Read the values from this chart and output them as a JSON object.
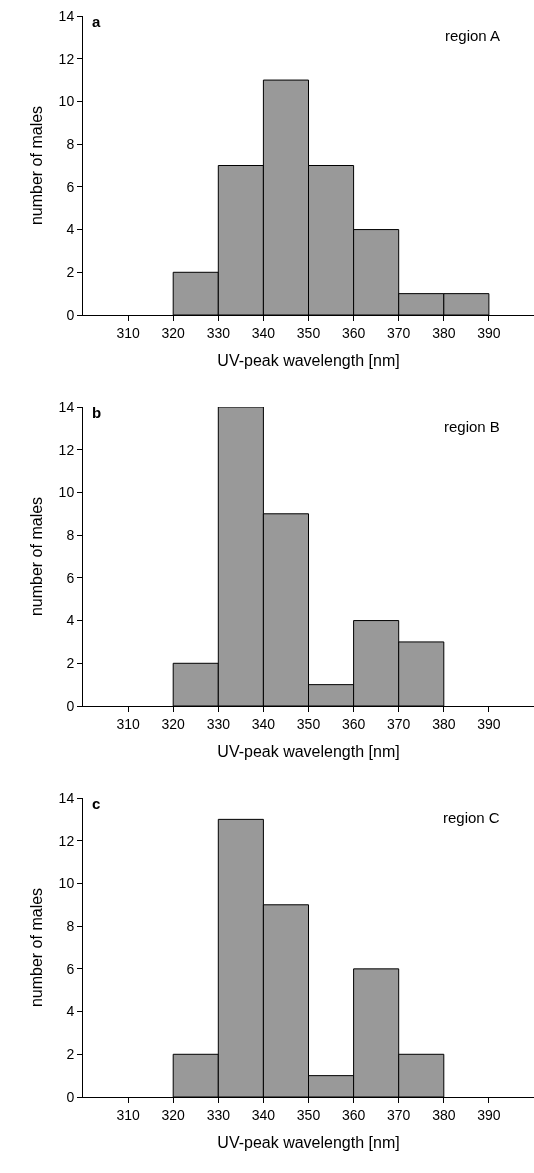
{
  "chart_data": [
    {
      "type": "histogram",
      "title": "a",
      "xlabel": "UV-peak wavelength [nm]",
      "ylabel": "number of males",
      "annotations": [
        "region A"
      ],
      "bins": [
        320,
        330,
        340,
        350,
        360,
        370,
        380,
        390
      ],
      "values": [
        2,
        7,
        11,
        7,
        4,
        1,
        1
      ],
      "color": "#999999",
      "xlim": [
        300,
        400
      ],
      "xticks": [
        310,
        320,
        330,
        340,
        350,
        360,
        370,
        380,
        390
      ],
      "ylim": [
        0,
        14
      ],
      "yticks": [
        0,
        2,
        4,
        6,
        8,
        10,
        12,
        14
      ]
    },
    {
      "type": "histogram",
      "title": "b",
      "xlabel": "UV-peak wavelength [nm]",
      "ylabel": "number of males",
      "annotations": [
        "region B"
      ],
      "bins": [
        320,
        330,
        340,
        350,
        360,
        370,
        380
      ],
      "values": [
        2,
        14,
        9,
        1,
        4,
        3
      ],
      "color": "#999999",
      "xlim": [
        300,
        400
      ],
      "xticks": [
        310,
        320,
        330,
        340,
        350,
        360,
        370,
        380,
        390
      ],
      "ylim": [
        0,
        14
      ],
      "yticks": [
        0,
        2,
        4,
        6,
        8,
        10,
        12,
        14
      ]
    },
    {
      "type": "histogram",
      "title": "c",
      "xlabel": "UV-peak wavelength [nm]",
      "ylabel": "number of males",
      "annotations": [
        "region C"
      ],
      "bins": [
        320,
        330,
        340,
        350,
        360,
        370,
        380
      ],
      "values": [
        2,
        13,
        9,
        1,
        6,
        2
      ],
      "color": "#999999",
      "xlim": [
        300,
        400
      ],
      "xticks": [
        310,
        320,
        330,
        340,
        350,
        360,
        370,
        380,
        390
      ],
      "ylim": [
        0,
        14
      ],
      "yticks": [
        0,
        2,
        4,
        6,
        8,
        10,
        12,
        14
      ]
    }
  ]
}
